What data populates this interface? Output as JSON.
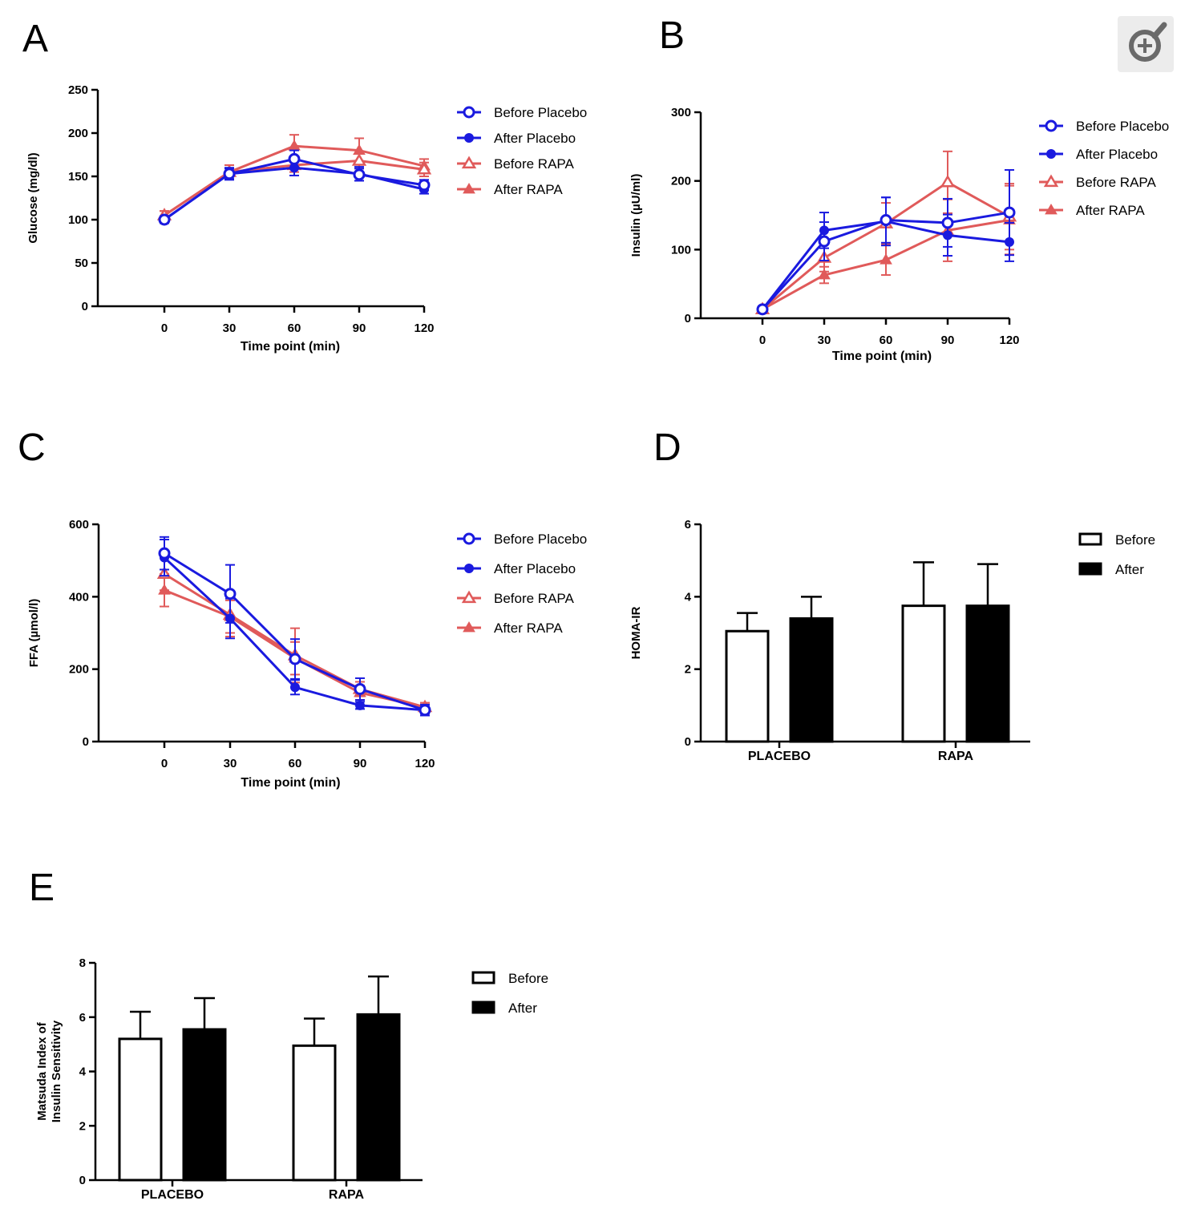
{
  "zoom_icon": "zoom-in-magnifier-icon",
  "colors": {
    "placebo": "#1a1adf",
    "rapa": "#e05a5a",
    "axis": "#000000",
    "bar_before": "#ffffff",
    "bar_after": "#000000"
  },
  "chart_data": [
    {
      "id": "A",
      "panel_label": "A",
      "type": "line",
      "xlabel": "Time point (min)",
      "ylabel": "Glucose (mg/dl)",
      "x": [
        0,
        30,
        60,
        90,
        120
      ],
      "xlim": [
        -30,
        120
      ],
      "ylim": [
        0,
        250
      ],
      "yticks": [
        0,
        50,
        100,
        150,
        200,
        250
      ],
      "series": [
        {
          "name": "Before Placebo",
          "color": "placebo",
          "marker": "open-circle",
          "values": [
            100,
            153,
            170,
            152,
            140
          ],
          "err": [
            4,
            6,
            10,
            7,
            6
          ]
        },
        {
          "name": "After Placebo",
          "color": "placebo",
          "marker": "filled-circle",
          "values": [
            100,
            153,
            160,
            153,
            135
          ],
          "err": [
            4,
            7,
            9,
            8,
            5
          ]
        },
        {
          "name": "Before RAPA",
          "color": "rapa",
          "marker": "open-triangle",
          "values": [
            105,
            155,
            163,
            168,
            158
          ],
          "err": [
            5,
            8,
            8,
            9,
            8
          ]
        },
        {
          "name": "After RAPA",
          "color": "rapa",
          "marker": "filled-triangle",
          "values": [
            105,
            155,
            185,
            180,
            162
          ],
          "err": [
            5,
            8,
            13,
            14,
            8
          ]
        }
      ]
    },
    {
      "id": "B",
      "panel_label": "B",
      "type": "line",
      "xlabel": "Time point (min)",
      "ylabel": "Insulin (µU/ml)",
      "x": [
        0,
        30,
        60,
        90,
        120
      ],
      "xlim": [
        -30,
        120
      ],
      "ylim": [
        0,
        300
      ],
      "yticks": [
        0,
        100,
        200,
        300
      ],
      "series": [
        {
          "name": "Before Placebo",
          "color": "placebo",
          "marker": "open-circle",
          "values": [
            13,
            112,
            143,
            139,
            154
          ],
          "err": [
            3,
            28,
            33,
            35,
            62
          ]
        },
        {
          "name": "After Placebo",
          "color": "placebo",
          "marker": "filled-circle",
          "values": [
            13,
            128,
            141,
            121,
            111
          ],
          "err": [
            3,
            26,
            35,
            30,
            28
          ]
        },
        {
          "name": "Before RAPA",
          "color": "rapa",
          "marker": "open-triangle",
          "values": [
            13,
            88,
            138,
            198,
            148
          ],
          "err": [
            3,
            20,
            30,
            45,
            48
          ]
        },
        {
          "name": "After RAPA",
          "color": "rapa",
          "marker": "filled-triangle",
          "values": [
            13,
            63,
            85,
            128,
            143
          ],
          "err": [
            3,
            12,
            22,
            45,
            50
          ]
        }
      ]
    },
    {
      "id": "C",
      "panel_label": "C",
      "type": "line",
      "xlabel": "Time point (min)",
      "ylabel": "FFA (µmol/l)",
      "x": [
        0,
        30,
        60,
        90,
        120
      ],
      "xlim": [
        -30,
        120
      ],
      "ylim": [
        0,
        600
      ],
      "yticks": [
        0,
        200,
        400,
        600
      ],
      "series": [
        {
          "name": "Before Placebo",
          "color": "placebo",
          "marker": "open-circle",
          "values": [
            520,
            408,
            228,
            145,
            87
          ],
          "err": [
            45,
            80,
            55,
            30,
            15
          ]
        },
        {
          "name": "After Placebo",
          "color": "placebo",
          "marker": "filled-circle",
          "values": [
            508,
            340,
            150,
            100,
            87
          ],
          "err": [
            50,
            55,
            20,
            10,
            10
          ]
        },
        {
          "name": "Before RAPA",
          "color": "rapa",
          "marker": "open-triangle",
          "values": [
            463,
            350,
            238,
            145,
            95
          ],
          "err": [
            45,
            60,
            75,
            20,
            12
          ]
        },
        {
          "name": "After RAPA",
          "color": "rapa",
          "marker": "filled-triangle",
          "values": [
            418,
            345,
            230,
            135,
            95
          ],
          "err": [
            45,
            45,
            45,
            20,
            12
          ]
        }
      ]
    },
    {
      "id": "D",
      "panel_label": "D",
      "type": "bar",
      "ylabel": "HOMA-IR",
      "categories": [
        "PLACEBO",
        "RAPA"
      ],
      "ylim": [
        0,
        6
      ],
      "yticks": [
        0,
        2,
        4,
        6
      ],
      "series": [
        {
          "name": "Before",
          "fill": "bar_before",
          "values": [
            3.05,
            3.75
          ],
          "err": [
            0.5,
            1.2
          ]
        },
        {
          "name": "After",
          "fill": "bar_after",
          "values": [
            3.4,
            3.75
          ],
          "err": [
            0.6,
            1.15
          ]
        }
      ]
    },
    {
      "id": "E",
      "panel_label": "E",
      "type": "bar",
      "ylabel_lines": [
        "Matsuda Index of",
        "Insulin Sensitivity"
      ],
      "categories": [
        "PLACEBO",
        "RAPA"
      ],
      "ylim": [
        0,
        8
      ],
      "yticks": [
        0,
        2,
        4,
        6,
        8
      ],
      "series": [
        {
          "name": "Before",
          "fill": "bar_before",
          "values": [
            5.2,
            4.95
          ],
          "err": [
            1.0,
            1.0
          ]
        },
        {
          "name": "After",
          "fill": "bar_after",
          "values": [
            5.55,
            6.1
          ],
          "err": [
            1.15,
            1.4
          ]
        }
      ]
    }
  ]
}
